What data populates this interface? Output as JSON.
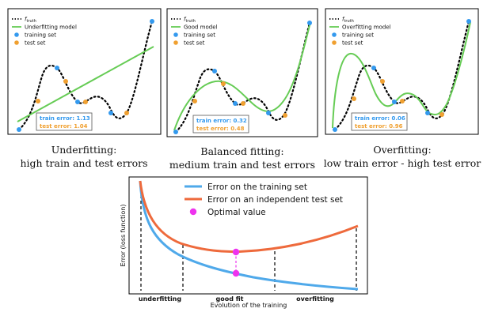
{
  "colors": {
    "truth": "#000000",
    "model": "#66cc55",
    "train": "#3399ee",
    "test": "#f0a030",
    "train_curve": "#4fa9ea",
    "test_curve": "#ee6a3c",
    "optimal": "#ee33ee"
  },
  "panels": [
    {
      "model_label": "Underfitting model",
      "truth_label": "f_truth",
      "train_label": "training set",
      "test_label": "test set",
      "train_error_text": "train error: 1.13",
      "test_error_text": "test error: 1.04",
      "caption_line1": "Underfitting:",
      "caption_line2": "high train and test errors"
    },
    {
      "model_label": "Good model",
      "truth_label": "f_truth",
      "train_label": "training set",
      "test_label": "test set",
      "train_error_text": "train error: 0.32",
      "test_error_text": "test error: 0.48",
      "caption_line1": "Balanced fitting:",
      "caption_line2": "medium train and test errors"
    },
    {
      "model_label": "Overfitting model",
      "truth_label": "f_truth",
      "train_label": "training set",
      "test_label": "test set",
      "train_error_text": "train error: 0.06",
      "test_error_text": "test error: 0.96",
      "caption_line1": "Overfitting:",
      "caption_line2": "low train error - high test error"
    }
  ],
  "bottom": {
    "legend_train": "Error on the training set",
    "legend_test": "Error on an independent test set",
    "legend_opt": "Optimal value",
    "ylabel": "Error (loss function)",
    "xlabel": "Evolution of the training",
    "region_under": "underfitting",
    "region_good": "good fit",
    "region_over": "overfitting"
  }
}
